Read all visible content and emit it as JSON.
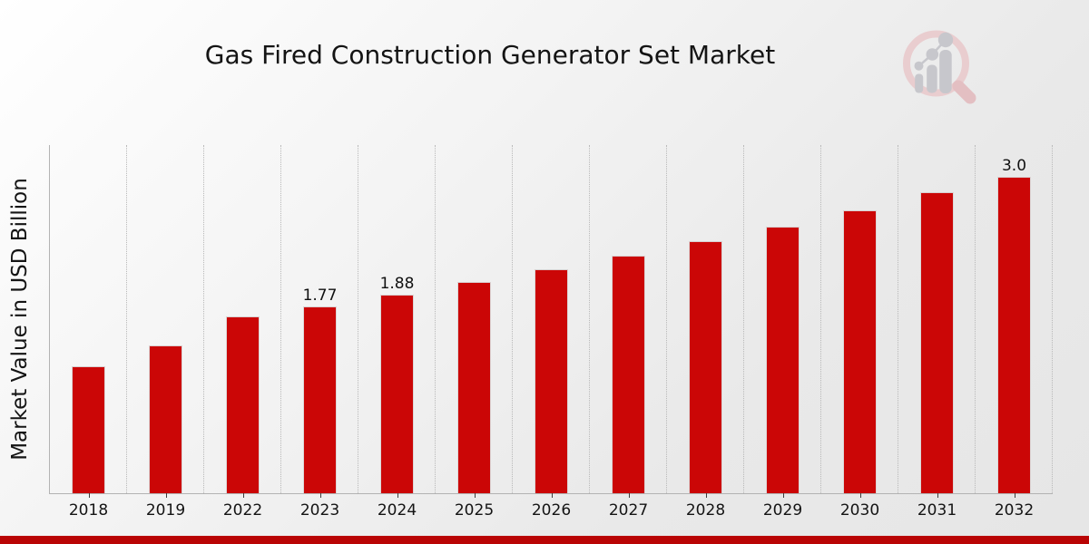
{
  "header": {
    "title": "Gas Fired Construction Generator Set Market"
  },
  "chart_data": {
    "type": "bar",
    "title": "Gas Fired Construction Generator Set Market",
    "xlabel": "",
    "ylabel": "Market Value in USD Billion",
    "categories": [
      "2018",
      "2019",
      "2022",
      "2023",
      "2024",
      "2025",
      "2026",
      "2027",
      "2028",
      "2029",
      "2030",
      "2031",
      "2032"
    ],
    "values": [
      1.2,
      1.4,
      1.67,
      1.77,
      1.88,
      2.0,
      2.12,
      2.25,
      2.39,
      2.53,
      2.68,
      2.85,
      3.0
    ],
    "bar_labels": [
      "",
      "",
      "",
      "1.77",
      "1.88",
      "",
      "",
      "",
      "",
      "",
      "",
      "",
      "3.0"
    ],
    "ylim": [
      0,
      3.31
    ],
    "bar_color": "#cb0606",
    "grid": "vertical-dotted",
    "legend": "none"
  },
  "footer": {
    "accent_bar_color": "#b90404"
  },
  "logo": {
    "name": "magnifier-growth-chart-logo",
    "ring_color": "#e9cdcf",
    "handle_color": "#e3bfc2",
    "bars_color": "#c7c7cc"
  }
}
